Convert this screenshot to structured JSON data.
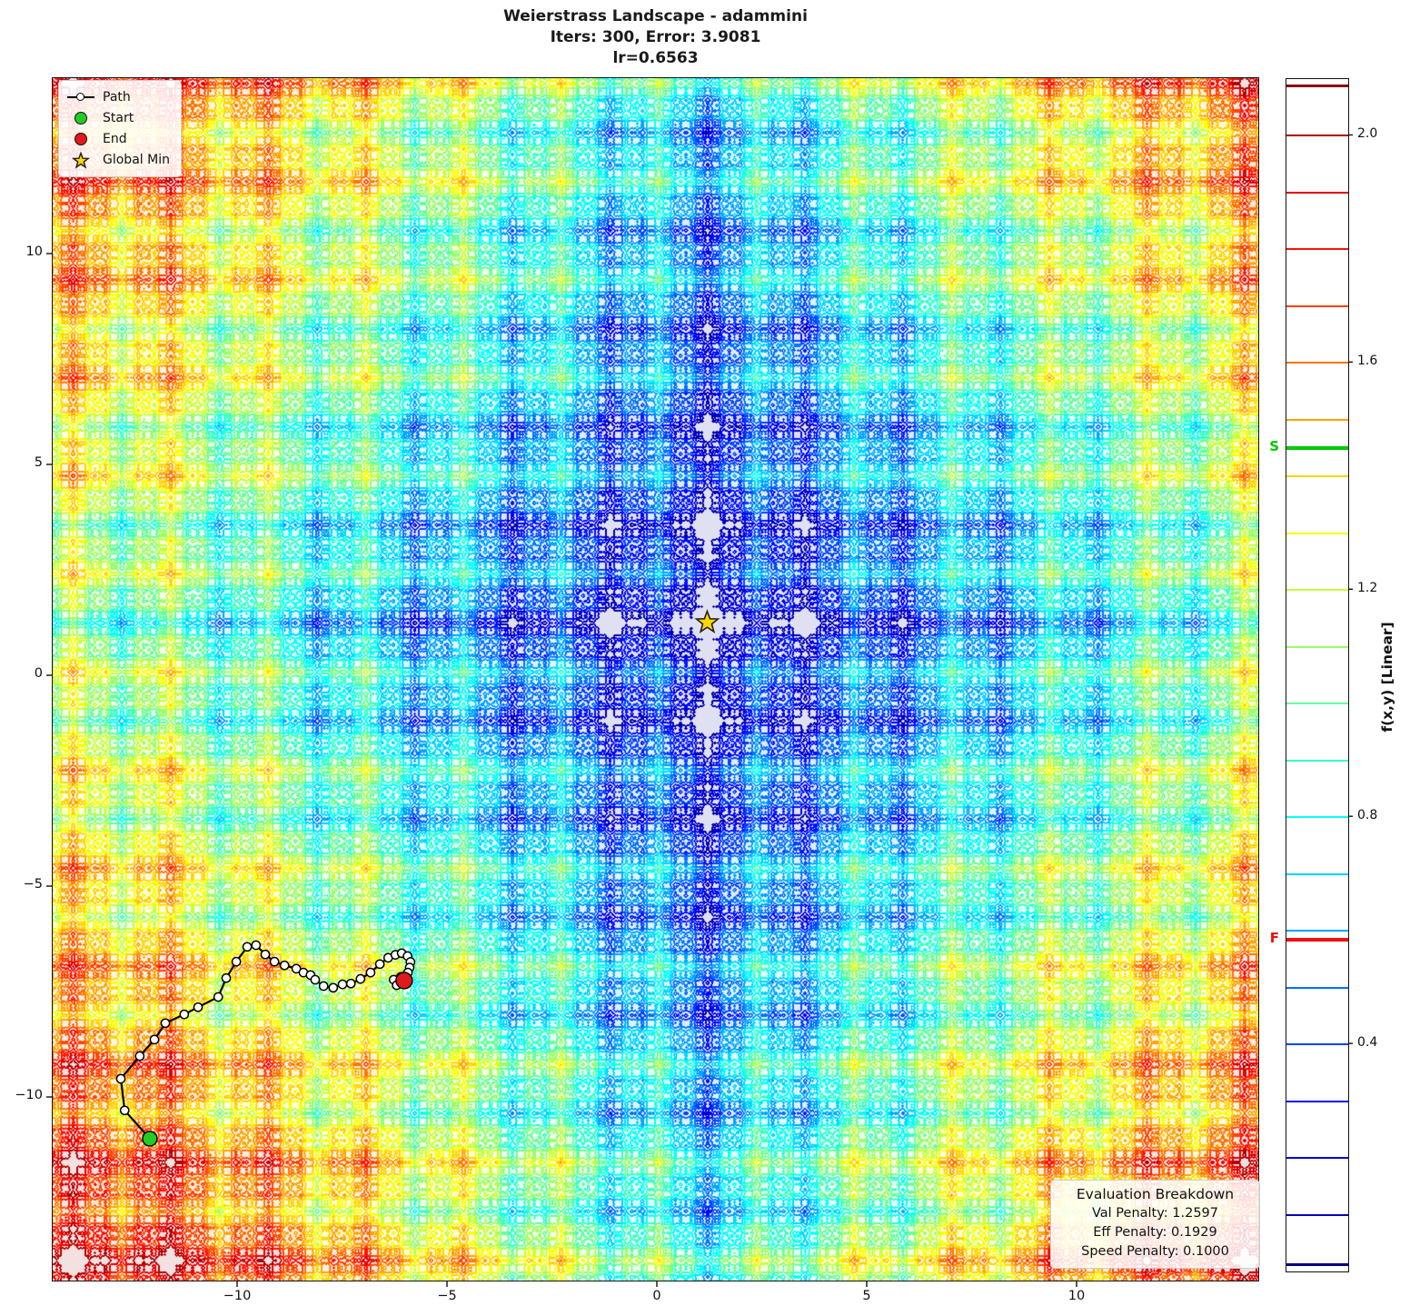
{
  "title": {
    "line1": "Weierstrass Landscape - adammini",
    "line2": "Iters: 300, Error: 3.9081",
    "line3": "lr=0.6563"
  },
  "legend": {
    "path": "Path",
    "start": "Start",
    "end": "End",
    "global_min": "Global Min"
  },
  "axes": {
    "x_tick_labels": [
      "−10",
      "−5",
      "0",
      "5",
      "10"
    ],
    "x_tick_values": [
      -10,
      -5,
      0,
      5,
      10
    ],
    "y_tick_labels": [
      "10",
      "5",
      "0",
      "−5",
      "−10"
    ],
    "y_tick_values": [
      10,
      5,
      0,
      -5,
      -10
    ]
  },
  "colorbar": {
    "label": "f(x,y) [Linear]",
    "tick_labels": [
      "2.0",
      "1.6",
      "1.2",
      "0.8",
      "0.4"
    ],
    "tick_values": [
      2.0,
      1.6,
      1.2,
      0.8,
      0.4
    ],
    "vmin": 0.0,
    "vmax": 2.1,
    "level_min": 0.1,
    "level_max": 2.0,
    "level_step": 0.1,
    "extreme_top_level": 2.088,
    "extreme_bottom_level": 0.012,
    "s_label": "S",
    "s_value": 1.45,
    "f_label": "F",
    "f_value": 0.584
  },
  "eval_box": {
    "title": "Evaluation Breakdown",
    "lines": [
      "Val Penalty: 1.2597",
      "Eff Penalty: 0.1929",
      "Speed Penalty: 0.1000"
    ]
  },
  "colors": {
    "start": "#22cc22",
    "end": "#e01a1a",
    "star": "#ffd700",
    "path": "#000000",
    "marker_fill": "#ffffff",
    "s_marker": "#00c800",
    "f_marker": "#ee1111",
    "axis": "#111111"
  },
  "chart_data": {
    "type": "heatmap",
    "subtype": "filled contour plot (fractal Weierstrass landscape) with optimizer trajectory",
    "title": "Weierstrass Landscape - adammini",
    "subtitle": "Iters: 300, Error: 3.9081, lr=0.6563",
    "optimizer": "adammini",
    "iters": 300,
    "error": 3.9081,
    "lr": 0.6563,
    "xlim": [
      -14.4,
      14.35
    ],
    "ylim": [
      -14.35,
      14.2
    ],
    "x_ticks": [
      -10,
      -5,
      0,
      5,
      10
    ],
    "y_ticks": [
      -10,
      -5,
      0,
      5,
      10
    ],
    "colormap": "jet",
    "grid": false,
    "legend_position": "upper left",
    "contour_levels": {
      "min": 0.1,
      "max": 2.0,
      "step": 0.1
    },
    "colorbar_range": [
      0.0,
      2.1
    ],
    "colorbar_label": "f(x,y) [Linear]",
    "colorbar_ticks": [
      0.4,
      0.8,
      1.2,
      1.6,
      2.0
    ],
    "start_value_marker": {
      "label": "S",
      "value": 1.45
    },
    "final_value_marker": {
      "label": "F",
      "value": 0.584
    },
    "global_min": {
      "x": 1.2,
      "y": 1.25
    },
    "start_point": {
      "x": -12.08,
      "y": -10.99
    },
    "end_point": {
      "x": -6.02,
      "y": -7.24
    },
    "path_points": [
      [
        -12.08,
        -10.99
      ],
      [
        -12.68,
        -10.32
      ],
      [
        -12.77,
        -9.57
      ],
      [
        -12.32,
        -9.03
      ],
      [
        -11.97,
        -8.64
      ],
      [
        -11.71,
        -8.25
      ],
      [
        -11.26,
        -8.04
      ],
      [
        -10.93,
        -7.87
      ],
      [
        -10.45,
        -7.63
      ],
      [
        -10.26,
        -7.18
      ],
      [
        -10.02,
        -6.79
      ],
      [
        -9.76,
        -6.44
      ],
      [
        -9.55,
        -6.4
      ],
      [
        -9.33,
        -6.62
      ],
      [
        -9.11,
        -6.79
      ],
      [
        -8.87,
        -6.88
      ],
      [
        -8.59,
        -6.96
      ],
      [
        -8.42,
        -7.05
      ],
      [
        -8.25,
        -7.11
      ],
      [
        -8.14,
        -7.22
      ],
      [
        -7.94,
        -7.37
      ],
      [
        -7.71,
        -7.41
      ],
      [
        -7.49,
        -7.33
      ],
      [
        -7.29,
        -7.31
      ],
      [
        -7.06,
        -7.2
      ],
      [
        -6.82,
        -7.05
      ],
      [
        -6.6,
        -6.85
      ],
      [
        -6.4,
        -6.7
      ],
      [
        -6.23,
        -6.63
      ],
      [
        -6.08,
        -6.59
      ],
      [
        -5.94,
        -6.66
      ],
      [
        -5.87,
        -6.8
      ],
      [
        -5.89,
        -6.93
      ],
      [
        -5.93,
        -7.05
      ],
      [
        -6.1,
        -7.15
      ],
      [
        -6.27,
        -7.22
      ],
      [
        -6.2,
        -7.35
      ],
      [
        -6.02,
        -7.24
      ]
    ],
    "penalties": {
      "val": 1.2597,
      "eff": 0.1929,
      "speed": 0.1
    }
  }
}
